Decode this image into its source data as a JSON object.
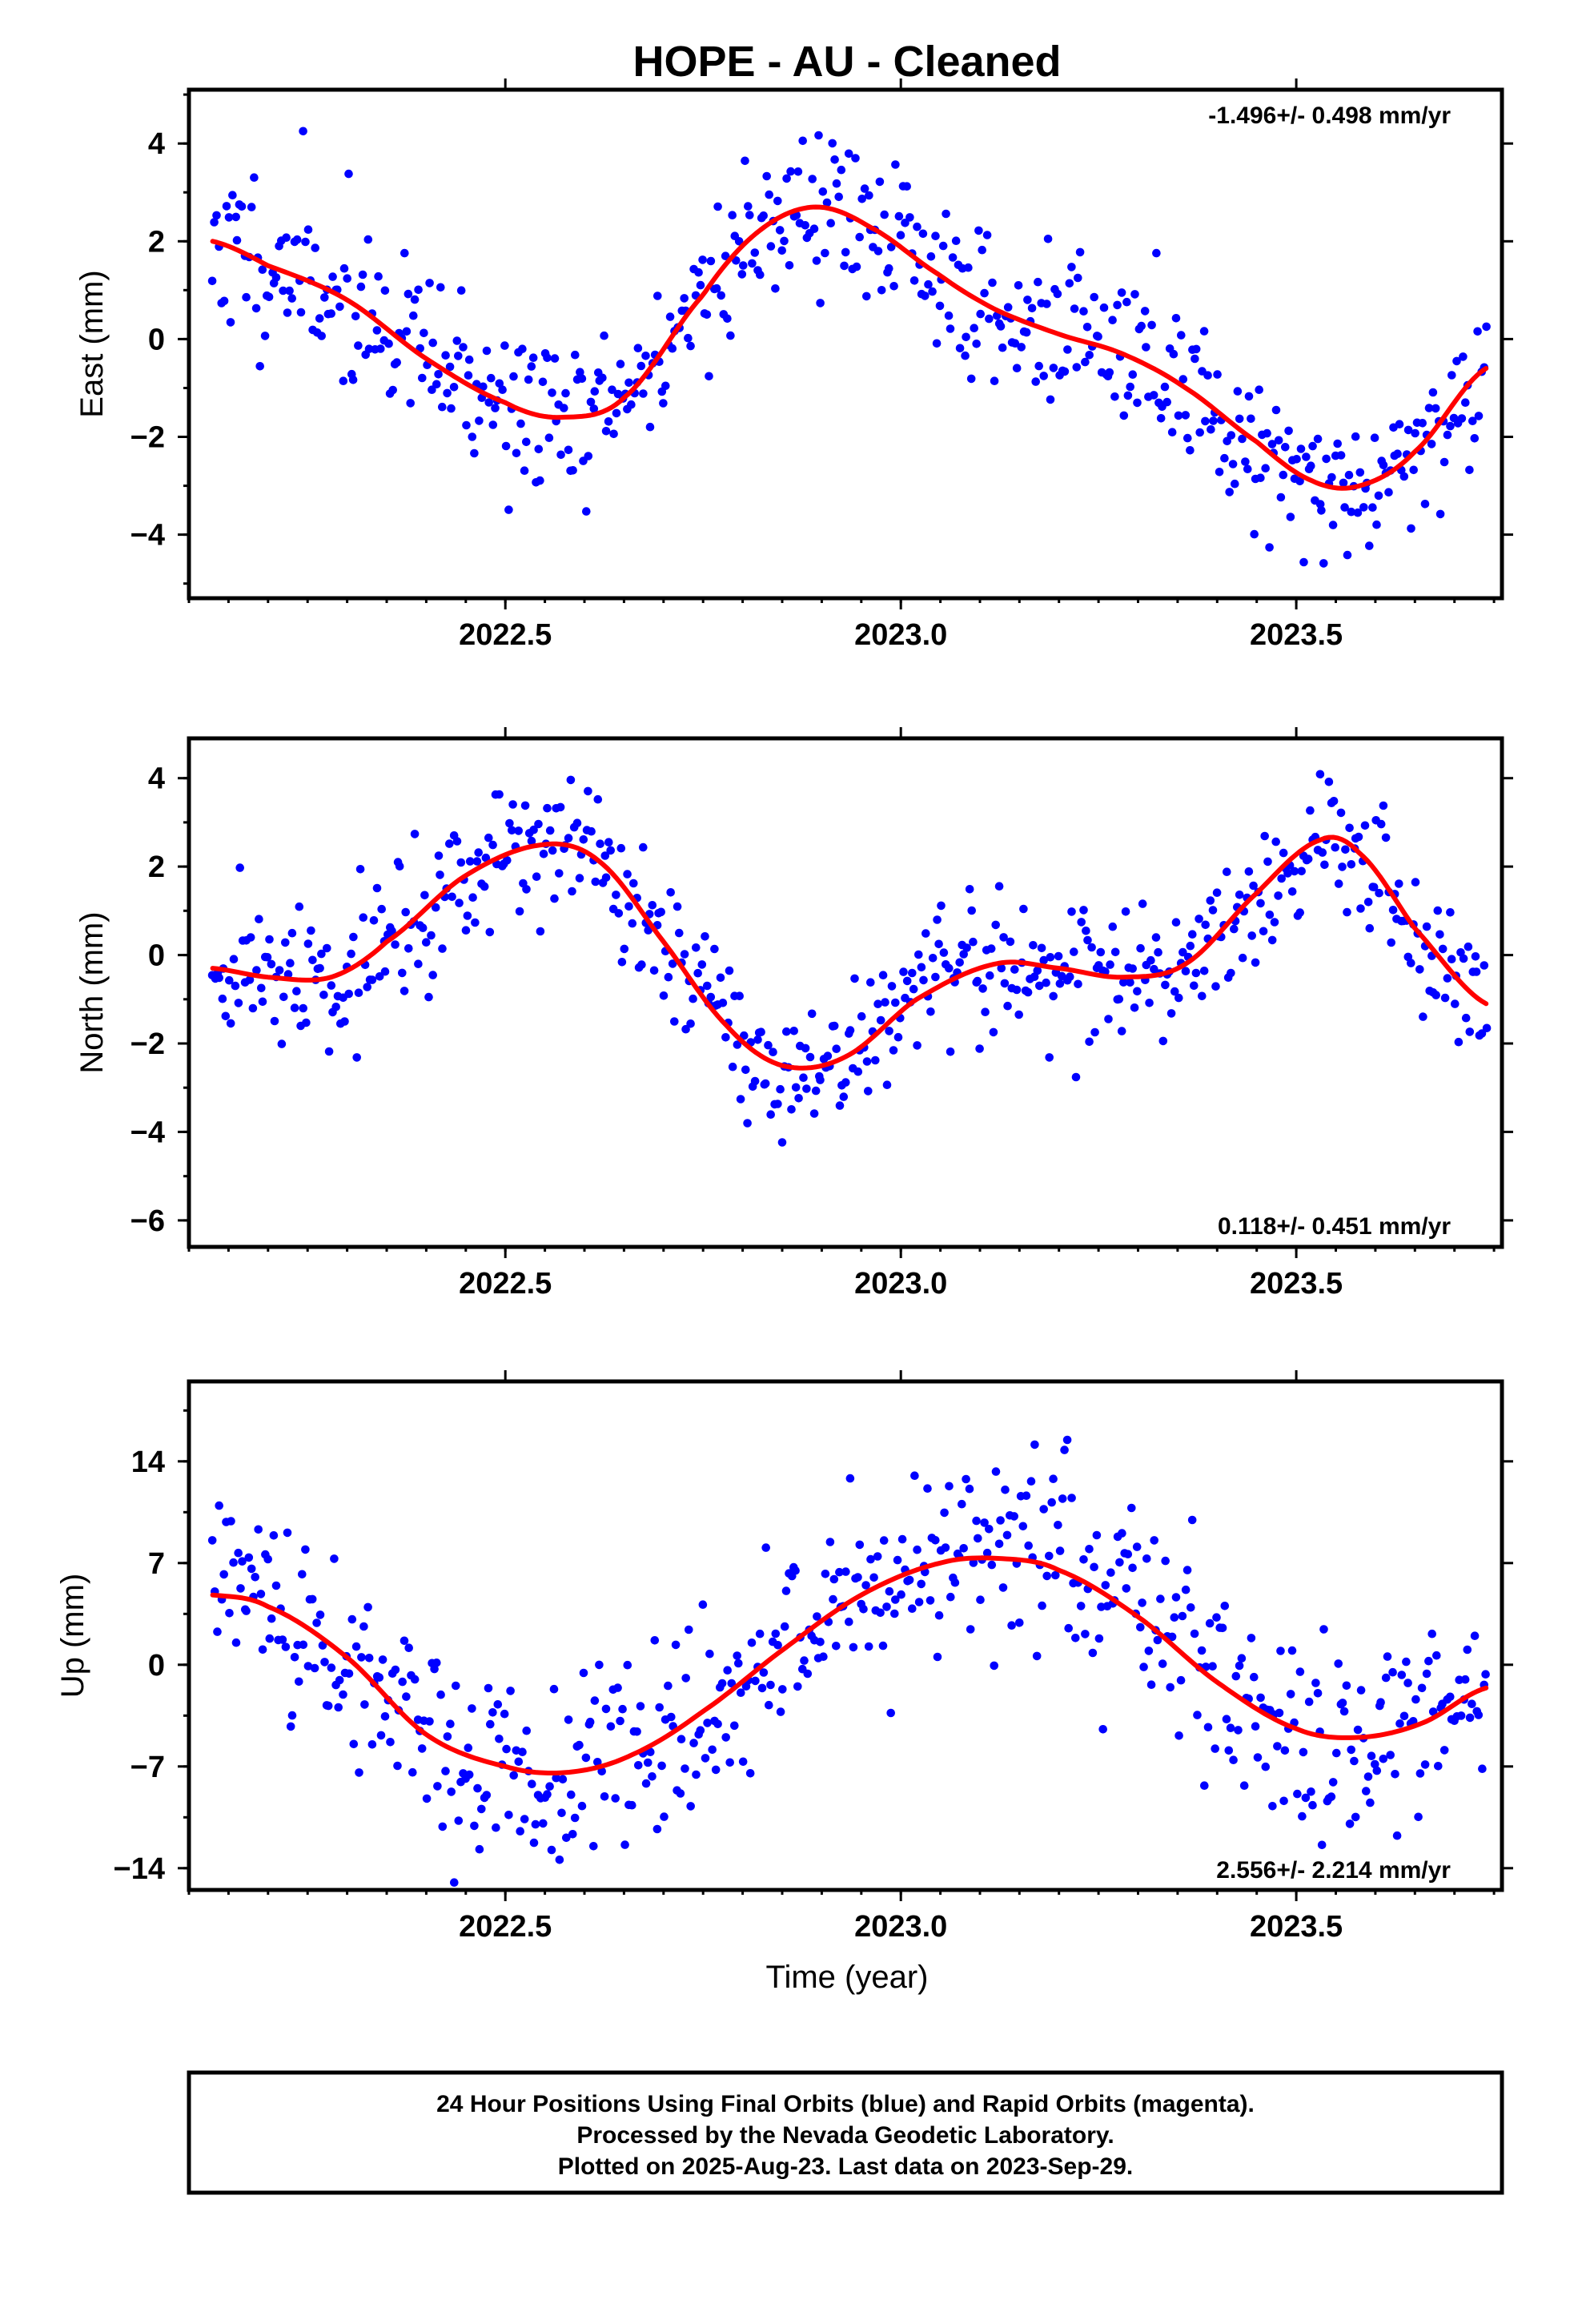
{
  "title": "HOPE  - AU - Cleaned",
  "xlabel": "Time (year)",
  "footer": [
    "24 Hour Positions Using Final Orbits (blue) and Rapid Orbits (magenta).",
    "Processed by the Nevada Geodetic Laboratory.",
    "Plotted on 2025-Aug-23. Last data on 2023-Sep-29."
  ],
  "colors": {
    "final_orbits": "#0000ff",
    "fit": "#ff0000",
    "frame": "#000000"
  },
  "chart_data": [
    {
      "type": "scatter",
      "ylabel": "East (mm)",
      "rate_text": "-1.496+/- 0.498 mm/yr",
      "xlim": [
        2022.1,
        2023.76
      ],
      "ylim": [
        -5.3,
        5.1
      ],
      "x_ticks": [
        2022.5,
        2023.0,
        2023.5
      ],
      "x_tick_labels": [
        "2022.5",
        "2023.0",
        "2023.5"
      ],
      "y_ticks": [
        -4,
        -2,
        0,
        2,
        4
      ],
      "y_tick_labels": [
        "−4",
        "−2",
        "0",
        "2",
        "4"
      ],
      "grid": false,
      "fit_knots": {
        "x": [
          2022.13,
          2022.2,
          2022.3,
          2022.4,
          2022.5,
          2022.57,
          2022.65,
          2022.75,
          2022.82,
          2022.89,
          2022.96,
          2023.05,
          2023.12,
          2023.2,
          2023.28,
          2023.36,
          2023.45,
          2023.52,
          2023.58,
          2023.65,
          2023.74
        ],
        "y": [
          2.0,
          1.5,
          0.8,
          -0.4,
          -1.3,
          -1.6,
          -1.2,
          0.9,
          2.2,
          2.7,
          2.3,
          1.3,
          0.6,
          0.1,
          -0.3,
          -1.0,
          -2.1,
          -2.9,
          -3.0,
          -2.3,
          -0.6
        ]
      },
      "noise": 0.85,
      "seed": 11,
      "n_points": 560
    },
    {
      "type": "scatter",
      "ylabel": "North (mm)",
      "rate_text": "0.118+/- 0.451 mm/yr",
      "xlim": [
        2022.1,
        2023.76
      ],
      "ylim": [
        -6.6,
        4.9
      ],
      "x_ticks": [
        2022.5,
        2023.0,
        2023.5
      ],
      "x_tick_labels": [
        "2022.5",
        "2023.0",
        "2023.5"
      ],
      "y_ticks": [
        -6,
        -4,
        -2,
        0,
        2,
        4
      ],
      "y_tick_labels": [
        "−6",
        "−4",
        "−2",
        "0",
        "2",
        "4"
      ],
      "grid": false,
      "fit_knots": {
        "x": [
          2022.13,
          2022.2,
          2022.28,
          2022.35,
          2022.45,
          2022.55,
          2022.62,
          2022.7,
          2022.78,
          2022.85,
          2022.93,
          2023.02,
          2023.12,
          2023.2,
          2023.28,
          2023.36,
          2023.45,
          2023.53,
          2023.58,
          2023.65,
          2023.74
        ],
        "y": [
          -0.3,
          -0.5,
          -0.5,
          0.3,
          1.8,
          2.5,
          2.1,
          0.3,
          -1.6,
          -2.5,
          -2.3,
          -1.0,
          -0.2,
          -0.3,
          -0.5,
          -0.2,
          1.4,
          2.6,
          2.3,
          0.6,
          -1.1
        ]
      },
      "noise": 0.8,
      "seed": 29,
      "n_points": 560
    },
    {
      "type": "scatter",
      "ylabel": "Up (mm)",
      "rate_text": "2.556+/- 2.214 mm/yr",
      "xlim": [
        2022.1,
        2023.76
      ],
      "ylim": [
        -15.5,
        19.5
      ],
      "x_ticks": [
        2022.5,
        2023.0,
        2023.5
      ],
      "x_tick_labels": [
        "2022.5",
        "2023.0",
        "2023.5"
      ],
      "y_ticks": [
        -14,
        -7,
        0,
        7,
        14
      ],
      "y_tick_labels": [
        "−14",
        "−7",
        "0",
        "7",
        "14"
      ],
      "grid": false,
      "fit_knots": {
        "x": [
          2022.13,
          2022.2,
          2022.3,
          2022.4,
          2022.5,
          2022.58,
          2022.66,
          2022.75,
          2022.85,
          2022.95,
          2023.05,
          2023.13,
          2023.2,
          2023.3,
          2023.4,
          2023.5,
          2023.58,
          2023.66,
          2023.74
        ],
        "y": [
          4.8,
          4.0,
          0.5,
          -4.8,
          -7.0,
          -7.4,
          -6.2,
          -3.2,
          1.0,
          4.8,
          7.0,
          7.3,
          6.5,
          3.3,
          -1.2,
          -4.4,
          -5.0,
          -4.0,
          -1.6
        ]
      },
      "noise": 3.4,
      "seed": 47,
      "n_points": 560
    }
  ]
}
